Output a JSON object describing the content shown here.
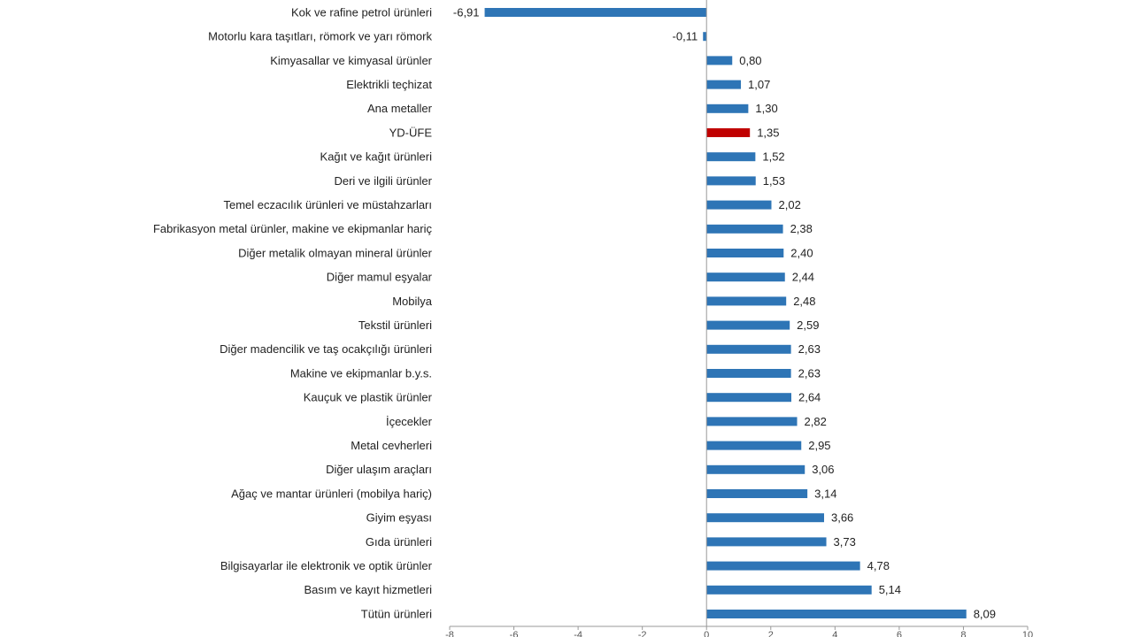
{
  "chart_data": {
    "type": "barh",
    "categories": [
      "Kok ve rafine petrol ürünleri",
      "Motorlu kara taşıtları, römork ve yarı römork",
      "Kimyasallar ve kimyasal ürünler",
      "Elektrikli teçhizat",
      "Ana metaller",
      "YD-ÜFE",
      "Kağıt ve kağıt ürünleri",
      "Deri ve ilgili ürünler",
      "Temel eczacılık ürünleri ve müstahzarları",
      "Fabrikasyon metal ürünler, makine ve ekipmanlar hariç",
      "Diğer metalik olmayan mineral ürünler",
      "Diğer mamul eşyalar",
      "Mobilya",
      "Tekstil ürünleri",
      "Diğer madencilik ve taş ocakçılığı ürünleri",
      "Makine ve ekipmanlar b.y.s.",
      "Kauçuk ve plastik ürünler",
      "İçecekler",
      "Metal cevherleri",
      "Diğer ulaşım araçları",
      "Ağaç ve mantar ürünleri (mobilya hariç)",
      "Giyim eşyası",
      "Gıda ürünleri",
      "Bilgisayarlar ile elektronik ve optik ürünler",
      "Basım ve kayıt hizmetleri",
      "Tütün ürünleri"
    ],
    "values": [
      -6.91,
      -0.11,
      0.8,
      1.07,
      1.3,
      1.35,
      1.52,
      1.53,
      2.02,
      2.38,
      2.4,
      2.44,
      2.48,
      2.59,
      2.63,
      2.63,
      2.64,
      2.82,
      2.95,
      3.06,
      3.14,
      3.66,
      3.73,
      4.78,
      5.14,
      8.09
    ],
    "value_labels": [
      "-6,91",
      "-0,11",
      "0,80",
      "1,07",
      "1,30",
      "1,35",
      "1,52",
      "1,53",
      "2,02",
      "2,38",
      "2,40",
      "2,44",
      "2,48",
      "2,59",
      "2,63",
      "2,63",
      "2,64",
      "2,82",
      "2,95",
      "3,06",
      "3,14",
      "3,66",
      "3,73",
      "4,78",
      "5,14",
      "8,09"
    ],
    "colors": [
      "#2e75b6",
      "#2e75b6",
      "#2e75b6",
      "#2e75b6",
      "#2e75b6",
      "#c00000",
      "#2e75b6",
      "#2e75b6",
      "#2e75b6",
      "#2e75b6",
      "#2e75b6",
      "#2e75b6",
      "#2e75b6",
      "#2e75b6",
      "#2e75b6",
      "#2e75b6",
      "#2e75b6",
      "#2e75b6",
      "#2e75b6",
      "#2e75b6",
      "#2e75b6",
      "#2e75b6",
      "#2e75b6",
      "#2e75b6",
      "#2e75b6",
      "#2e75b6"
    ],
    "xlim": [
      -8,
      10
    ],
    "xticks": [
      -8,
      -6,
      -4,
      -2,
      0,
      2,
      4,
      6,
      8,
      10
    ]
  }
}
